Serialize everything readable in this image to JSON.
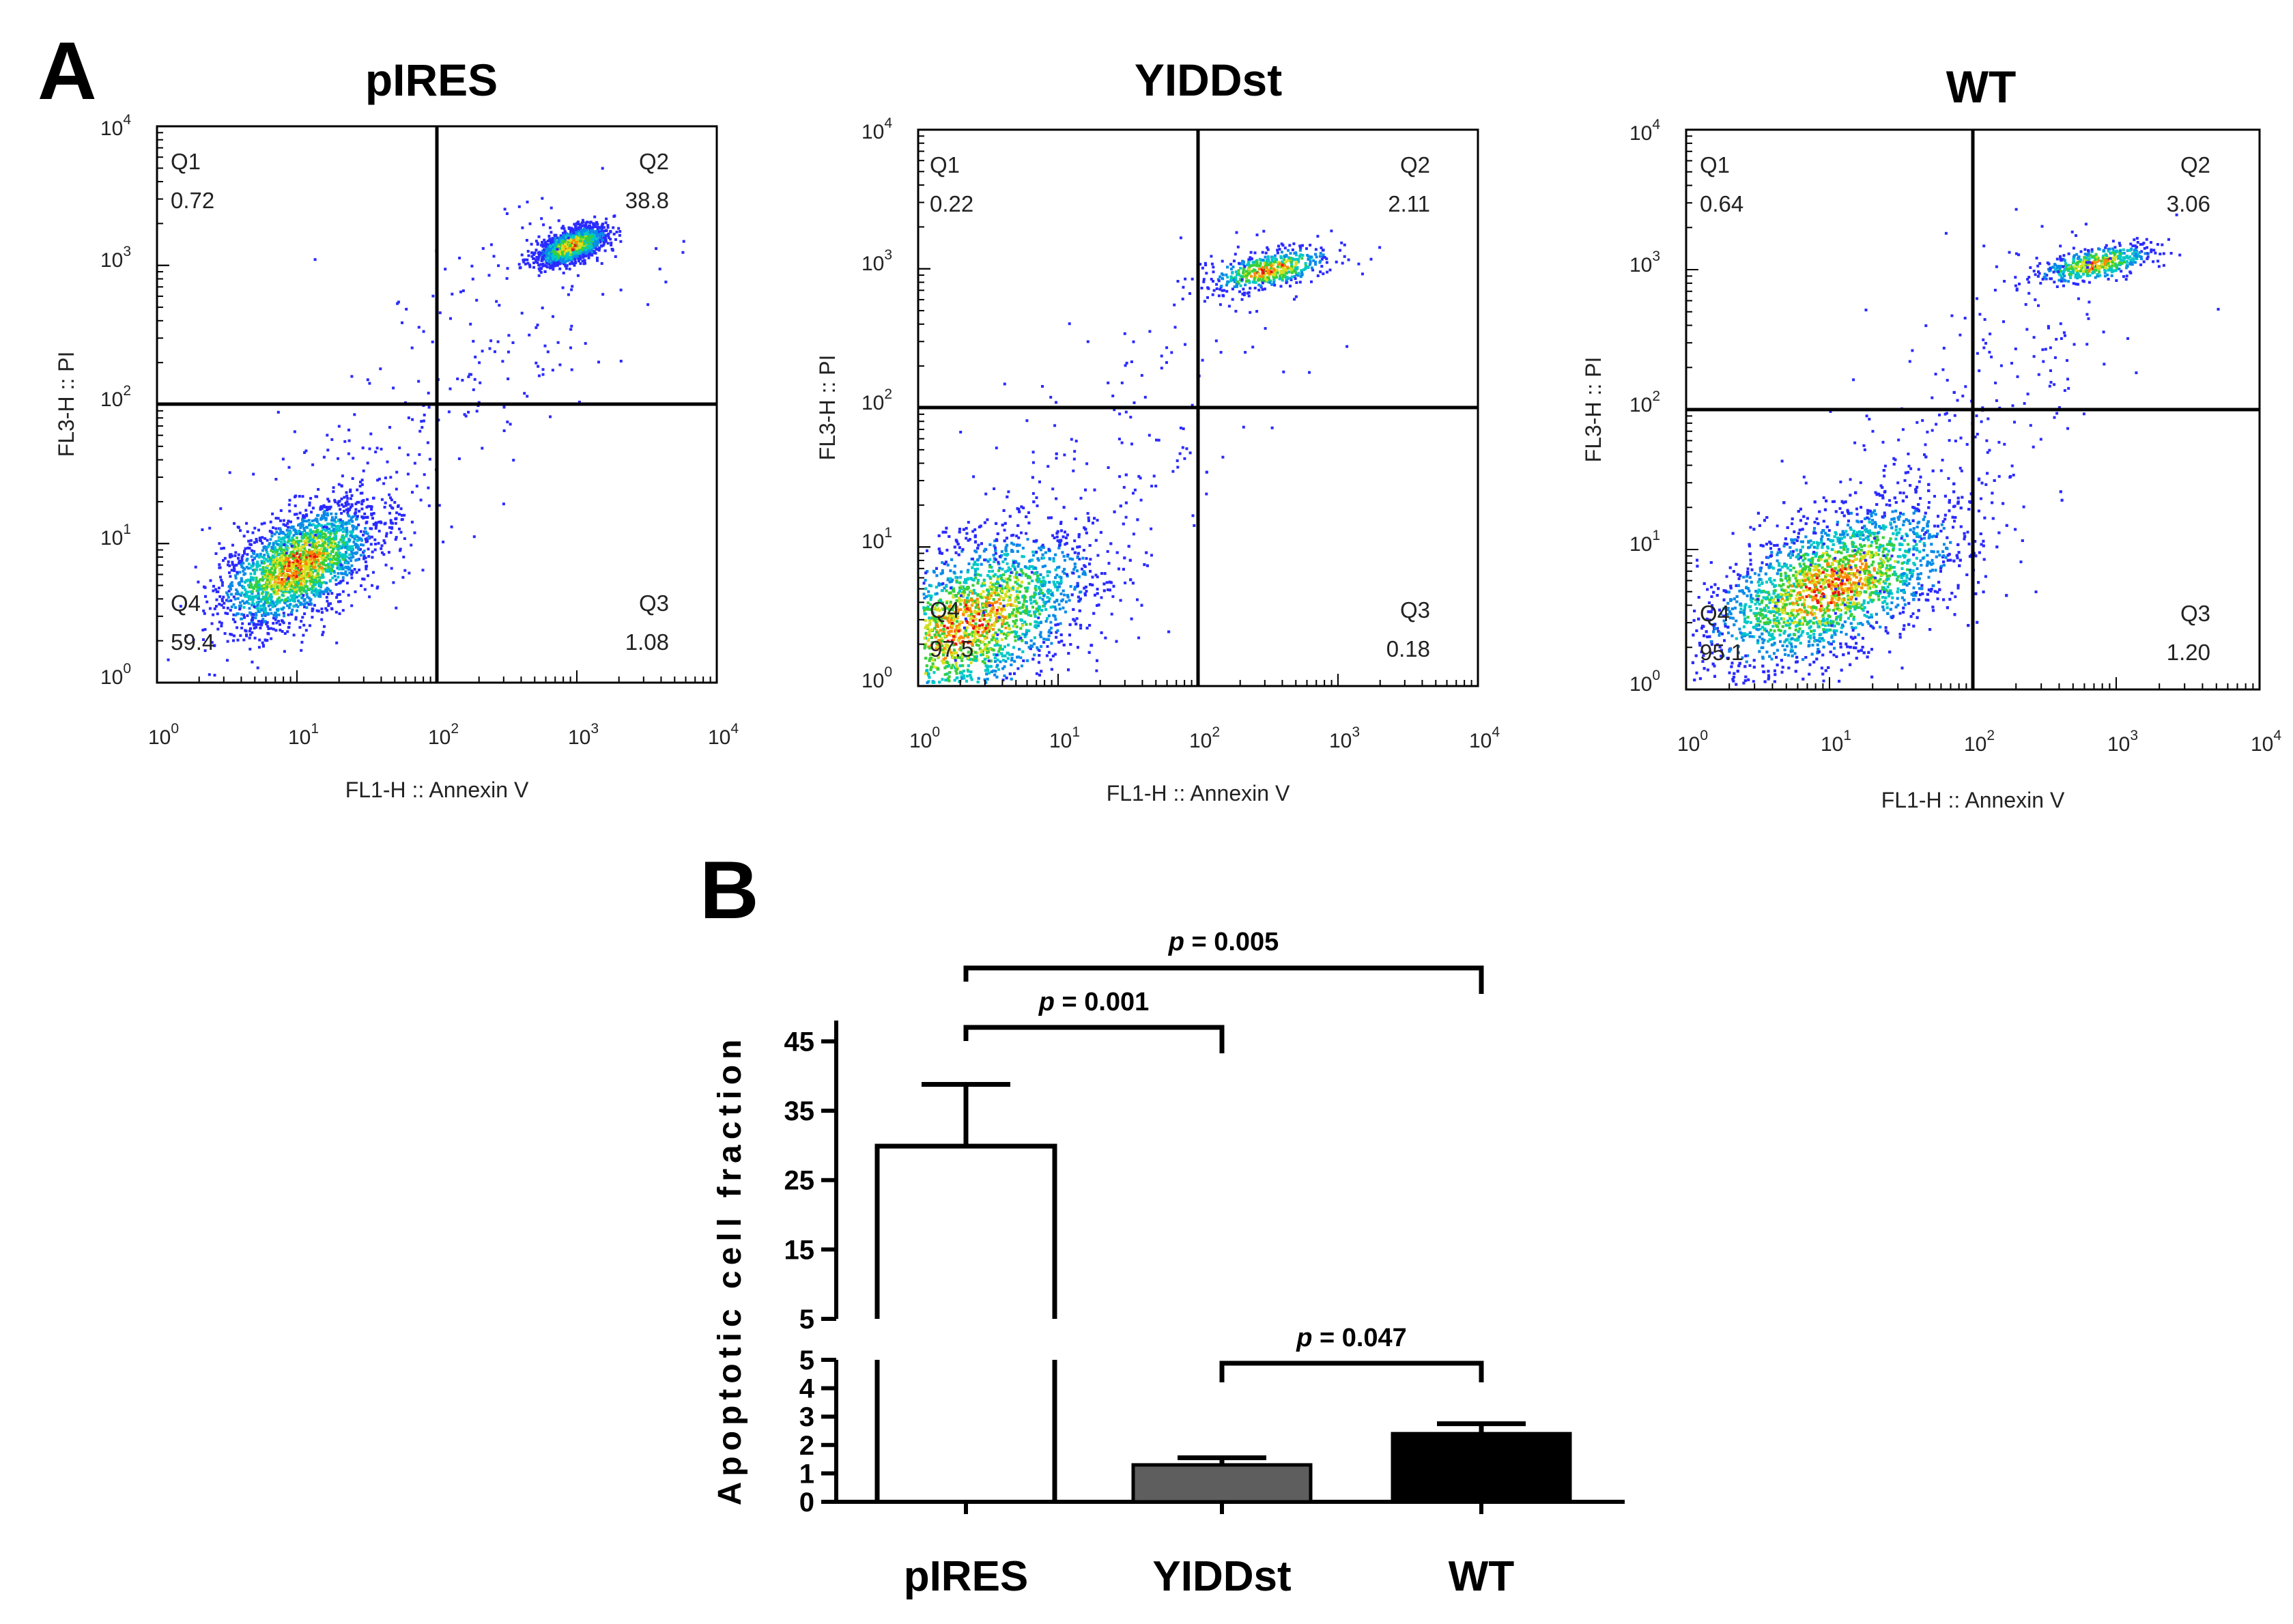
{
  "chart_data": [
    {
      "type": "scatter",
      "panel": "A",
      "title": "pIRES",
      "xlabel": "FL1-H :: Annexin V",
      "ylabel": "FL3-H :: PI",
      "xscale": "log",
      "yscale": "log",
      "xlim": [
        1,
        10000
      ],
      "ylim": [
        1,
        10000
      ],
      "ticks_base": "10",
      "ticks_exp": [
        "0",
        "1",
        "2",
        "3",
        "4"
      ],
      "gate": {
        "x": 100,
        "y": 100
      },
      "quadrants": [
        {
          "name": "Q1",
          "value": "0.72",
          "position": "top-left"
        },
        {
          "name": "Q2",
          "value": "38.8",
          "position": "top-right"
        },
        {
          "name": "Q3",
          "value": "1.08",
          "position": "bottom-right"
        },
        {
          "name": "Q4",
          "value": "59.4",
          "position": "bottom-left"
        }
      ],
      "populations": [
        {
          "cx": 1.0,
          "cy": 0.85,
          "sx": 0.28,
          "sy": 0.22,
          "n": 2300
        },
        {
          "cx": 2.96,
          "cy": 3.15,
          "sx": 0.12,
          "sy": 0.07,
          "n": 1400
        }
      ],
      "bridge": 260
    },
    {
      "type": "scatter",
      "panel": "A",
      "title": "YIDDst",
      "xlabel": "FL1-H :: Annexin V",
      "ylabel": "FL3-H :: PI",
      "xscale": "log",
      "yscale": "log",
      "xlim": [
        1,
        10000
      ],
      "ylim": [
        1,
        10000
      ],
      "ticks_base": "10",
      "ticks_exp": [
        "0",
        "1",
        "2",
        "3",
        "4"
      ],
      "gate": {
        "x": 100,
        "y": 100
      },
      "quadrants": [
        {
          "name": "Q1",
          "value": "0.22",
          "position": "top-left"
        },
        {
          "name": "Q2",
          "value": "2.11",
          "position": "top-right"
        },
        {
          "name": "Q3",
          "value": "0.18",
          "position": "bottom-right"
        },
        {
          "name": "Q4",
          "value": "97.5",
          "position": "bottom-left"
        }
      ],
      "populations": [
        {
          "cx": 0.35,
          "cy": 0.45,
          "sx": 0.45,
          "sy": 0.35,
          "n": 4200
        },
        {
          "cx": 2.5,
          "cy": 3.0,
          "sx": 0.22,
          "sy": 0.08,
          "n": 500
        }
      ],
      "bridge": 180
    },
    {
      "type": "scatter",
      "panel": "A",
      "title": "WT",
      "xlabel": "FL1-H :: Annexin V",
      "ylabel": "FL3-H :: PI",
      "xscale": "log",
      "yscale": "log",
      "xlim": [
        1,
        10000
      ],
      "ylim": [
        1,
        10000
      ],
      "ticks_base": "10",
      "ticks_exp": [
        "0",
        "1",
        "2",
        "3",
        "4"
      ],
      "gate": {
        "x": 100,
        "y": 100
      },
      "quadrants": [
        {
          "name": "Q1",
          "value": "0.64",
          "position": "top-left"
        },
        {
          "name": "Q2",
          "value": "3.06",
          "position": "top-right"
        },
        {
          "name": "Q3",
          "value": "1.20",
          "position": "bottom-right"
        },
        {
          "name": "Q4",
          "value": "95.1",
          "position": "bottom-left"
        }
      ],
      "populations": [
        {
          "cx": 1.0,
          "cy": 0.75,
          "sx": 0.45,
          "sy": 0.3,
          "n": 4800
        },
        {
          "cx": 2.85,
          "cy": 3.05,
          "sx": 0.2,
          "sy": 0.07,
          "n": 450
        }
      ],
      "bridge": 260
    },
    {
      "type": "bar",
      "panel": "B",
      "title": "",
      "xlabel": "",
      "ylabel": "Apoptotic cell fraction",
      "categories": [
        "pIRES",
        "YIDDst",
        "WT"
      ],
      "values": [
        29.9,
        1.3,
        2.4
      ],
      "errors": [
        8.9,
        0.25,
        0.35
      ],
      "bar_colors": [
        "#ffffff",
        "#5e5e5e",
        "#000000"
      ],
      "y_axis_break": {
        "lower": {
          "range": [
            0,
            5
          ],
          "ticks": [
            "0",
            "1",
            "2",
            "3",
            "4",
            "5"
          ]
        },
        "upper": {
          "range": [
            5,
            48
          ],
          "ticks": [
            "5",
            "15",
            "25",
            "35",
            "45"
          ]
        }
      },
      "significance": [
        {
          "from": 0,
          "to": 2,
          "label_p": "p",
          "label_rest": " = 0.005"
        },
        {
          "from": 0,
          "to": 1,
          "label_p": "p",
          "label_rest": " = 0.001"
        },
        {
          "from": 1,
          "to": 2,
          "label_p": "p",
          "label_rest": " = 0.047"
        }
      ]
    }
  ],
  "panel_labels": {
    "a": "A",
    "b": "B"
  }
}
